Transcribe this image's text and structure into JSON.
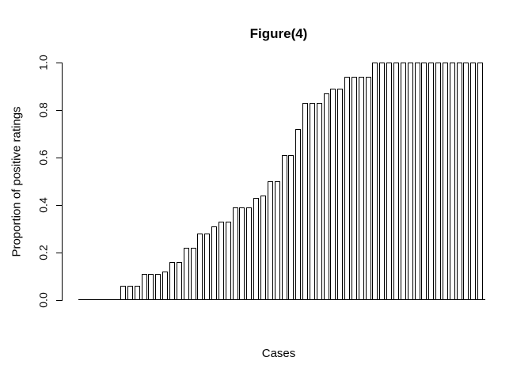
{
  "chart_data": {
    "type": "bar",
    "title": "Figure(4)",
    "xlabel": "Cases",
    "ylabel": "Proportion of positive ratings",
    "ylim": [
      0.0,
      1.0
    ],
    "grid": false,
    "legend": false,
    "bar_fill": "#ffffff",
    "bar_outline": "#000000",
    "yticks": [
      "0.0",
      "0.2",
      "0.4",
      "0.6",
      "0.8",
      "1.0"
    ],
    "ytick_values": [
      0.0,
      0.2,
      0.4,
      0.6,
      0.8,
      1.0
    ],
    "categories_note": "individual cases, unlabeled on x-axis, sorted ascending by proportion",
    "values": [
      0.0,
      0.0,
      0.0,
      0.0,
      0.0,
      0.0,
      0.06,
      0.06,
      0.06,
      0.11,
      0.11,
      0.11,
      0.12,
      0.16,
      0.16,
      0.22,
      0.22,
      0.28,
      0.28,
      0.31,
      0.33,
      0.33,
      0.39,
      0.39,
      0.39,
      0.43,
      0.44,
      0.5,
      0.5,
      0.61,
      0.61,
      0.72,
      0.83,
      0.83,
      0.83,
      0.87,
      0.89,
      0.89,
      0.94,
      0.94,
      0.94,
      0.94,
      1.0,
      1.0,
      1.0,
      1.0,
      1.0,
      1.0,
      1.0,
      1.0,
      1.0,
      1.0,
      1.0,
      1.0,
      1.0,
      1.0,
      1.0,
      1.0
    ]
  }
}
